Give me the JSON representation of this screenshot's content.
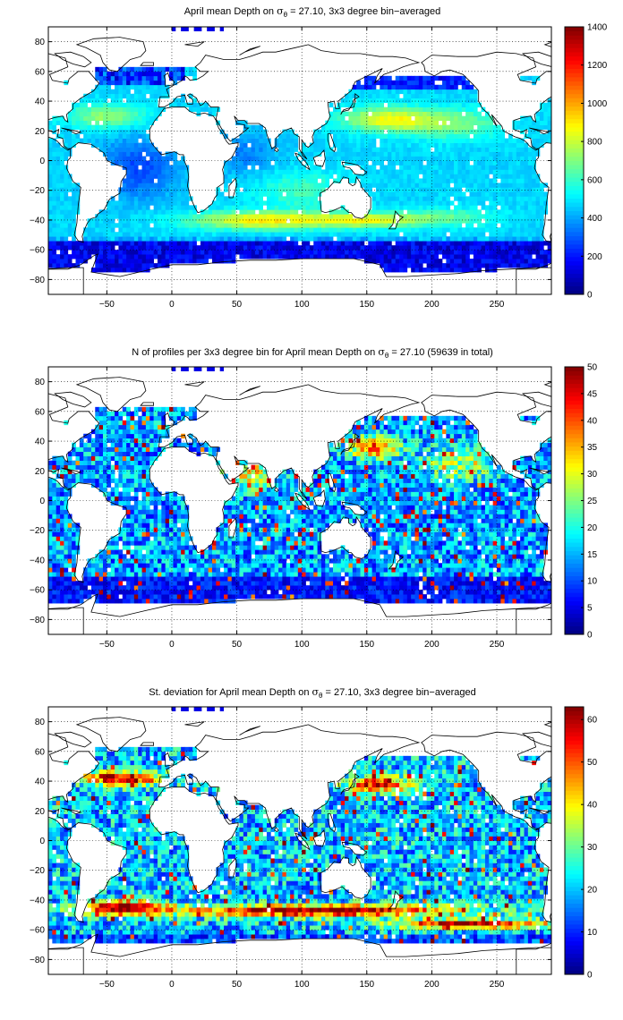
{
  "chart_data": [
    {
      "type": "heatmap",
      "title": "April mean Depth on σθ = 27.10, 3x3 degree bin−averaged",
      "title_parts": {
        "pre": "April mean Depth on ",
        "sigma": "σ",
        "sub": "θ",
        "post": " = 27.10, 3x3 degree bin−averaged"
      },
      "xlim": [
        -95,
        292
      ],
      "ylim": [
        -90,
        90
      ],
      "xticks": [
        -50,
        0,
        50,
        100,
        150,
        200,
        250
      ],
      "yticks": [
        80,
        60,
        40,
        20,
        0,
        -20,
        -40,
        -60,
        -80
      ],
      "grid": true,
      "colorbar": {
        "min": 0,
        "max": 1400,
        "ticks": [
          0,
          200,
          400,
          600,
          800,
          1000,
          1200,
          1400
        ]
      },
      "variable": "depth"
    },
    {
      "type": "heatmap",
      "title": "N of profiles per 3x3 degree bin for April mean Depth on σθ = 27.10 (59639 in total)",
      "title_parts": {
        "pre": "N of profiles per 3x3 degree bin for April mean Depth on ",
        "sigma": "σ",
        "sub": "θ",
        "post": " = 27.10 (59639 in total)"
      },
      "xlim": [
        -95,
        292
      ],
      "ylim": [
        -90,
        90
      ],
      "xticks": [
        -50,
        0,
        50,
        100,
        150,
        200,
        250
      ],
      "yticks": [
        80,
        60,
        40,
        20,
        0,
        -20,
        -40,
        -60,
        -80
      ],
      "grid": true,
      "colorbar": {
        "min": 0,
        "max": 50,
        "ticks": [
          0,
          5,
          10,
          15,
          20,
          25,
          30,
          35,
          40,
          45,
          50
        ]
      },
      "variable": "count"
    },
    {
      "type": "heatmap",
      "title": "St. deviation for April mean Depth on σθ = 27.10, 3x3 degree bin−averaged",
      "title_parts": {
        "pre": "St. deviation for April mean Depth on ",
        "sigma": "σ",
        "sub": "θ",
        "post": " = 27.10, 3x3 degree bin−averaged"
      },
      "xlim": [
        -95,
        292
      ],
      "ylim": [
        -90,
        90
      ],
      "xticks": [
        -50,
        0,
        50,
        100,
        150,
        200,
        250
      ],
      "yticks": [
        80,
        60,
        40,
        20,
        0,
        -20,
        -40,
        -60,
        -80
      ],
      "grid": true,
      "colorbar": {
        "min": 0,
        "max": 63,
        "ticks": [
          0,
          10,
          20,
          30,
          40,
          50,
          60
        ]
      },
      "variable": "stdev"
    }
  ]
}
